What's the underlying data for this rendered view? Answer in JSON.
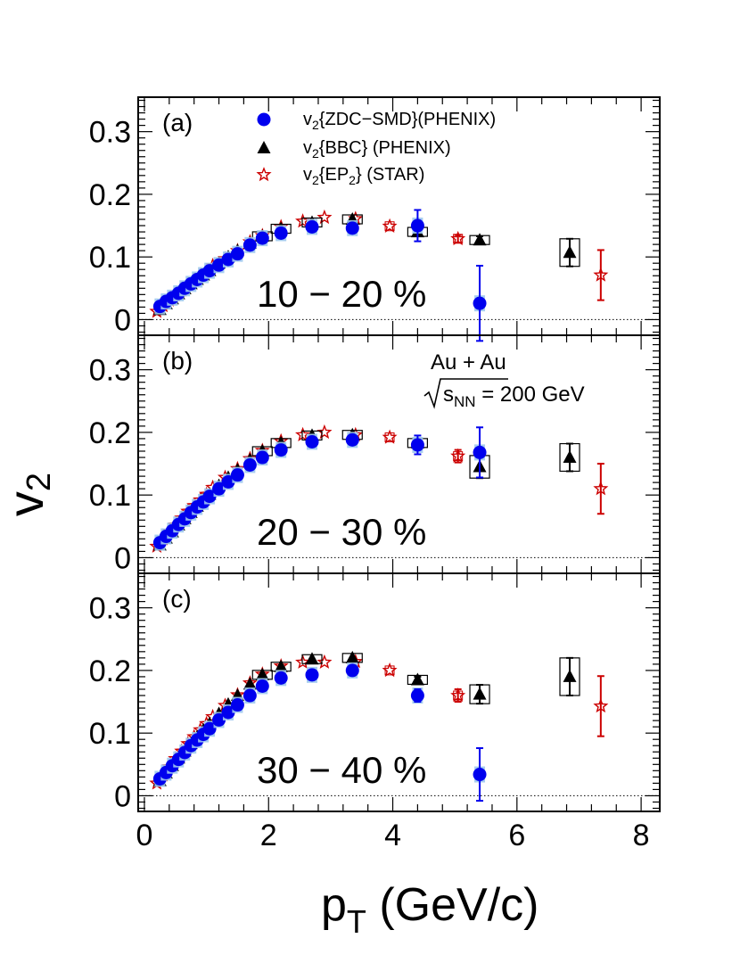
{
  "figure": {
    "ylabel": "v",
    "ylabel_sub": "2",
    "xlabel": "p",
    "xlabel_sub": "T",
    "xlabel_unit": " (GeV/c)",
    "system_label": "Au + Au",
    "energy_label_s": "s",
    "energy_label_sub": "NN",
    "energy_label_value": " = 200 GeV"
  },
  "legend": [
    {
      "series": "zdc",
      "prefix": "v",
      "sub": "2",
      "text": "{ZDC−SMD}(PHENIX)",
      "color": "#0000ee",
      "marker": "circle"
    },
    {
      "series": "bbc",
      "prefix": "v",
      "sub": "2",
      "text": "{BBC} (PHENIX)",
      "color": "#000000",
      "marker": "triangle"
    },
    {
      "series": "star",
      "prefix": "v",
      "sub": "2",
      "text": "{EP",
      "sub2": "2",
      "text2": "} (STAR)",
      "color": "#cc0000",
      "marker": "open-star"
    }
  ],
  "chart_data": [
    {
      "type": "scatter",
      "panel": "(a)",
      "centrality": "10 − 20 %",
      "xlim": [
        -0.1,
        8.3
      ],
      "ylim": [
        -0.025,
        0.355
      ],
      "xticks": [
        "0",
        "2",
        "4",
        "6",
        "8"
      ],
      "yticks": [
        "0",
        "0.1",
        "0.2",
        "0.3"
      ],
      "series": [
        {
          "key": "zdc",
          "x": [
            0.25,
            0.35,
            0.45,
            0.55,
            0.65,
            0.75,
            0.85,
            0.95,
            1.05,
            1.2,
            1.35,
            1.5,
            1.7,
            1.9,
            2.2,
            2.7,
            3.35,
            4.4,
            5.4
          ],
          "y": [
            0.021,
            0.029,
            0.035,
            0.042,
            0.05,
            0.057,
            0.064,
            0.071,
            0.078,
            0.087,
            0.096,
            0.105,
            0.119,
            0.13,
            0.138,
            0.148,
            0.146,
            0.15,
            0.026
          ],
          "err": [
            0,
            0,
            0,
            0,
            0,
            0,
            0,
            0,
            0,
            0,
            0,
            0,
            0,
            0,
            0,
            0,
            0,
            0.025,
            0.06
          ]
        },
        {
          "key": "bbc",
          "x": [
            0.25,
            0.35,
            0.45,
            0.55,
            0.65,
            0.75,
            0.85,
            0.95,
            1.05,
            1.2,
            1.35,
            1.5,
            1.7,
            1.9,
            2.2,
            2.7,
            3.35,
            4.4,
            5.4,
            6.85
          ],
          "y": [
            0.016,
            0.025,
            0.033,
            0.041,
            0.049,
            0.057,
            0.064,
            0.071,
            0.078,
            0.09,
            0.1,
            0.11,
            0.122,
            0.133,
            0.145,
            0.155,
            0.16,
            0.14,
            0.127,
            0.107
          ],
          "err": [
            0,
            0,
            0,
            0,
            0,
            0,
            0,
            0,
            0,
            0,
            0,
            0,
            0,
            0,
            0,
            0,
            0,
            0.005,
            0.006,
            0.022
          ]
        },
        {
          "key": "star",
          "x": [
            0.2,
            0.3,
            0.4,
            0.5,
            0.6,
            0.7,
            0.8,
            0.9,
            1.0,
            1.1,
            1.3,
            1.5,
            1.7,
            1.9,
            2.2,
            2.55,
            2.9,
            3.4,
            3.95,
            5.05,
            7.35
          ],
          "y": [
            0.013,
            0.022,
            0.031,
            0.039,
            0.047,
            0.056,
            0.063,
            0.07,
            0.077,
            0.086,
            0.097,
            0.11,
            0.124,
            0.134,
            0.148,
            0.157,
            0.163,
            0.161,
            0.149,
            0.129,
            0.071
          ],
          "err": [
            0,
            0,
            0,
            0,
            0,
            0,
            0,
            0,
            0,
            0,
            0,
            0,
            0,
            0,
            0,
            0,
            0,
            0,
            0,
            0.006,
            0.04
          ]
        }
      ]
    },
    {
      "type": "scatter",
      "panel": "(b)",
      "centrality": "20 − 30 %",
      "xlim": [
        -0.1,
        8.3
      ],
      "ylim": [
        -0.025,
        0.355
      ],
      "xticks": [
        "0",
        "2",
        "4",
        "6",
        "8"
      ],
      "yticks": [
        "0",
        "0.1",
        "0.2",
        "0.3"
      ],
      "series": [
        {
          "key": "zdc",
          "x": [
            0.25,
            0.35,
            0.45,
            0.55,
            0.65,
            0.75,
            0.85,
            0.95,
            1.05,
            1.2,
            1.35,
            1.5,
            1.7,
            1.9,
            2.2,
            2.7,
            3.35,
            4.4,
            5.4
          ],
          "y": [
            0.024,
            0.034,
            0.043,
            0.053,
            0.062,
            0.072,
            0.081,
            0.089,
            0.098,
            0.11,
            0.121,
            0.132,
            0.148,
            0.16,
            0.172,
            0.185,
            0.188,
            0.18,
            0.168
          ],
          "err": [
            0,
            0,
            0,
            0,
            0,
            0,
            0,
            0,
            0,
            0,
            0,
            0,
            0,
            0,
            0,
            0,
            0,
            0.015,
            0.04
          ]
        },
        {
          "key": "bbc",
          "x": [
            0.25,
            0.35,
            0.45,
            0.55,
            0.65,
            0.75,
            0.85,
            0.95,
            1.05,
            1.2,
            1.35,
            1.5,
            1.7,
            1.9,
            2.2,
            2.7,
            3.35,
            4.4,
            5.4,
            6.85
          ],
          "y": [
            0.02,
            0.031,
            0.041,
            0.052,
            0.062,
            0.072,
            0.082,
            0.092,
            0.101,
            0.115,
            0.128,
            0.14,
            0.156,
            0.17,
            0.183,
            0.195,
            0.196,
            0.183,
            0.145,
            0.16
          ],
          "err": [
            0,
            0,
            0,
            0,
            0,
            0,
            0,
            0,
            0,
            0,
            0,
            0,
            0,
            0,
            0,
            0,
            0,
            0.005,
            0.018,
            0.022
          ]
        },
        {
          "key": "star",
          "x": [
            0.2,
            0.3,
            0.4,
            0.5,
            0.6,
            0.7,
            0.8,
            0.9,
            1.0,
            1.1,
            1.3,
            1.5,
            1.7,
            1.9,
            2.2,
            2.55,
            2.9,
            3.4,
            3.95,
            5.05,
            7.35
          ],
          "y": [
            0.018,
            0.03,
            0.042,
            0.052,
            0.063,
            0.074,
            0.083,
            0.092,
            0.101,
            0.112,
            0.128,
            0.142,
            0.158,
            0.171,
            0.186,
            0.196,
            0.2,
            0.196,
            0.192,
            0.162,
            0.11
          ],
          "err": [
            0,
            0,
            0,
            0,
            0,
            0,
            0,
            0,
            0,
            0,
            0,
            0,
            0,
            0,
            0,
            0,
            0,
            0,
            0,
            0.01,
            0.04
          ]
        }
      ]
    },
    {
      "type": "scatter",
      "panel": "(c)",
      "centrality": "30 − 40 %",
      "xlim": [
        -0.1,
        8.3
      ],
      "ylim": [
        -0.025,
        0.355
      ],
      "xticks": [
        "0",
        "2",
        "4",
        "6",
        "8"
      ],
      "yticks": [
        "0",
        "0.1",
        "0.2",
        "0.3"
      ],
      "series": [
        {
          "key": "zdc",
          "x": [
            0.25,
            0.35,
            0.45,
            0.55,
            0.65,
            0.75,
            0.85,
            0.95,
            1.05,
            1.2,
            1.35,
            1.5,
            1.7,
            1.9,
            2.2,
            2.7,
            3.35,
            4.4,
            5.4
          ],
          "y": [
            0.027,
            0.037,
            0.048,
            0.058,
            0.069,
            0.08,
            0.089,
            0.098,
            0.107,
            0.121,
            0.133,
            0.145,
            0.16,
            0.175,
            0.188,
            0.193,
            0.2,
            0.16,
            0.034
          ],
          "err": [
            0,
            0,
            0,
            0,
            0,
            0,
            0,
            0,
            0,
            0,
            0,
            0,
            0,
            0,
            0,
            0,
            0,
            0.01,
            0.042
          ]
        },
        {
          "key": "bbc",
          "x": [
            0.25,
            0.35,
            0.45,
            0.55,
            0.65,
            0.75,
            0.85,
            0.95,
            1.05,
            1.2,
            1.35,
            1.5,
            1.7,
            1.9,
            2.2,
            2.7,
            3.35,
            4.4,
            5.4,
            6.85
          ],
          "y": [
            0.024,
            0.036,
            0.048,
            0.06,
            0.071,
            0.083,
            0.094,
            0.105,
            0.115,
            0.131,
            0.146,
            0.16,
            0.178,
            0.193,
            0.206,
            0.218,
            0.22,
            0.185,
            0.162,
            0.19
          ],
          "err": [
            0,
            0,
            0,
            0,
            0,
            0,
            0,
            0,
            0,
            0,
            0,
            0,
            0,
            0,
            0,
            0,
            0,
            0.005,
            0.015,
            0.03
          ]
        },
        {
          "key": "star",
          "x": [
            0.2,
            0.3,
            0.4,
            0.5,
            0.6,
            0.7,
            0.8,
            0.9,
            1.0,
            1.1,
            1.3,
            1.5,
            1.7,
            1.9,
            2.2,
            2.55,
            2.9,
            3.4,
            3.95,
            5.05,
            7.35
          ],
          "y": [
            0.02,
            0.033,
            0.046,
            0.059,
            0.071,
            0.083,
            0.094,
            0.105,
            0.115,
            0.126,
            0.144,
            0.161,
            0.18,
            0.194,
            0.207,
            0.213,
            0.213,
            0.214,
            0.2,
            0.16,
            0.143
          ],
          "err": [
            0,
            0,
            0,
            0,
            0,
            0,
            0,
            0,
            0,
            0,
            0,
            0,
            0,
            0,
            0,
            0,
            0,
            0,
            0,
            0.01,
            0.048
          ]
        }
      ]
    }
  ]
}
